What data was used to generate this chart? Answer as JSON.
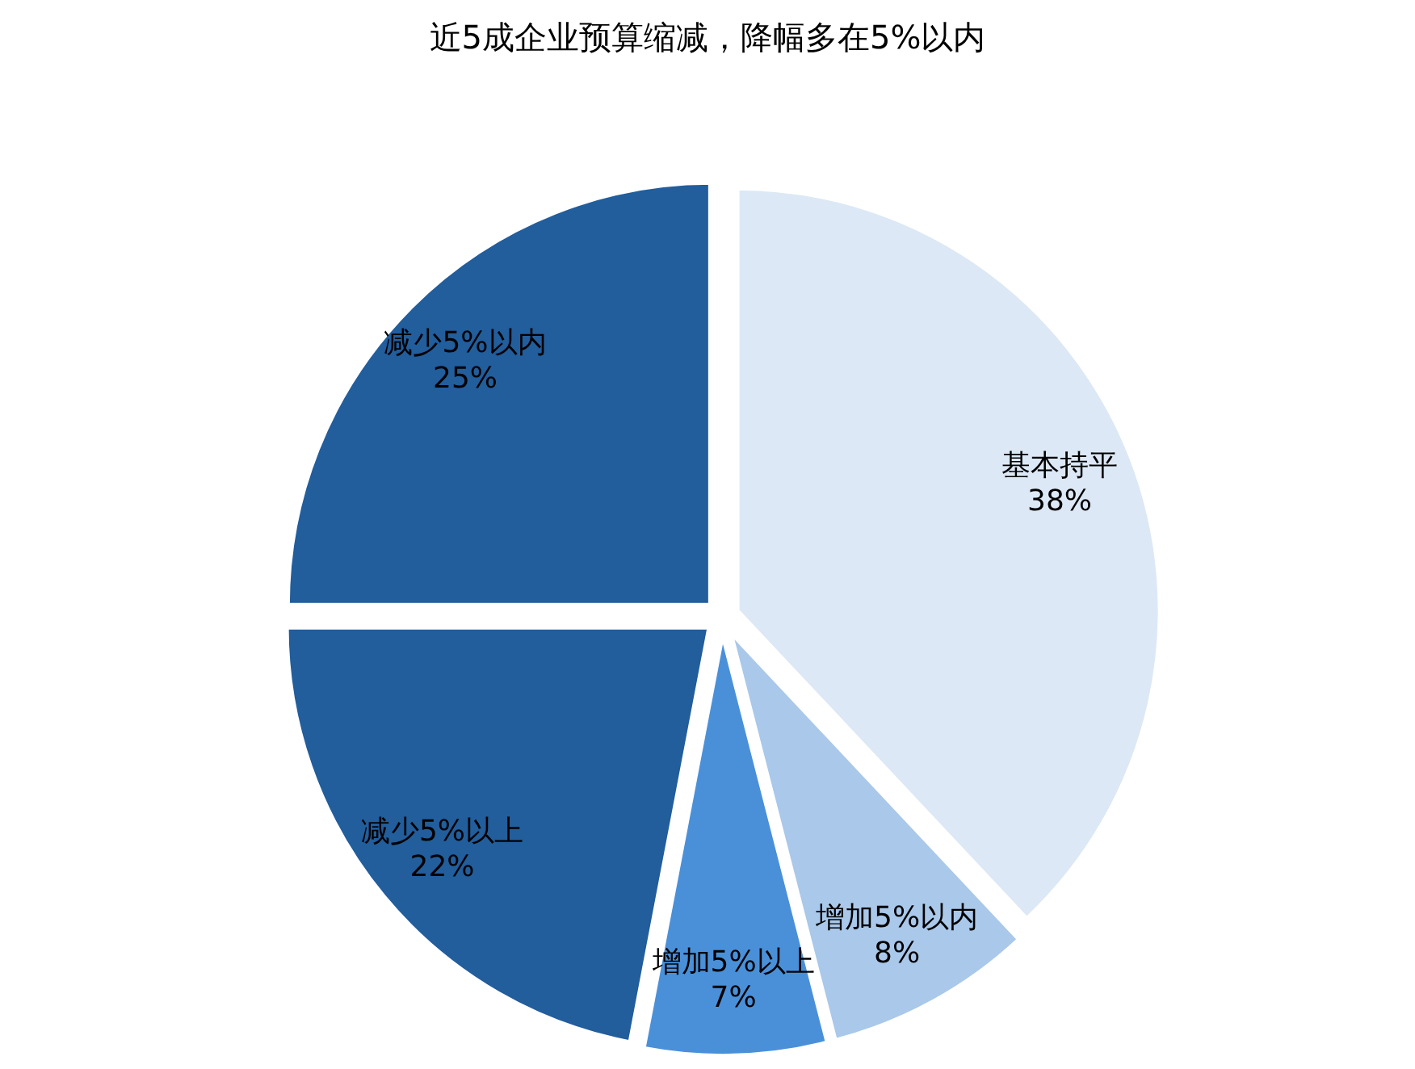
{
  "chart_data": {
    "type": "pie",
    "title": "近5成企业预算缩减，降幅多在5%以内",
    "categories": [
      "基本持平",
      "增加5%以内",
      "增加5%以上",
      "减少5%以上",
      "减少5%以内"
    ],
    "values": [
      38,
      8,
      7,
      22,
      25
    ],
    "colors": [
      "#dce8f5",
      "#a9c8ea",
      "#4a90d9",
      "#225d9c",
      "#225d9c"
    ],
    "value_labels": [
      "38%",
      "8%",
      "7%",
      "22%",
      "25%"
    ]
  }
}
